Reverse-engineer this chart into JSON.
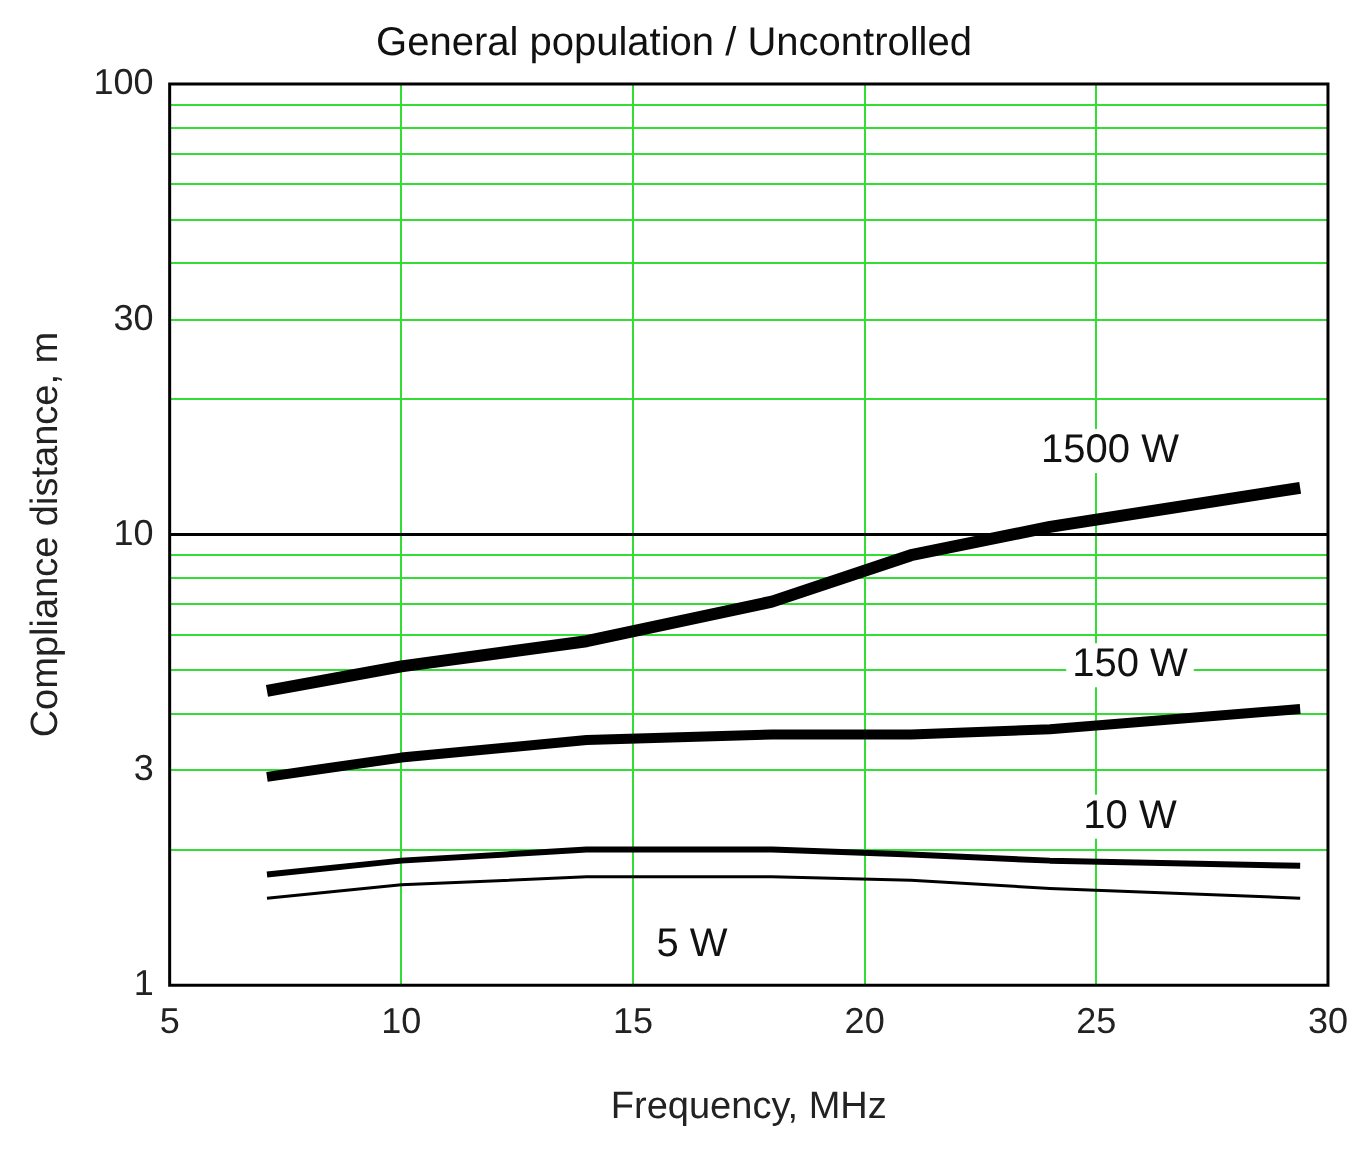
{
  "chart_data": {
    "type": "line",
    "title": "General population / Uncontrolled",
    "xlabel": "Frequency, MHz",
    "ylabel": "Compliance distance, m",
    "xlim": [
      5,
      30
    ],
    "xticks": [
      5,
      10,
      15,
      20,
      25,
      30
    ],
    "ylim": [
      1,
      100
    ],
    "log": "y",
    "yticks": [
      1,
      {
        "value": 2,
        "label": null
      },
      3,
      {
        "value": 4,
        "label": null
      },
      {
        "value": 5,
        "label": null
      },
      {
        "value": 6,
        "label": null
      },
      {
        "value": 7,
        "label": null
      },
      {
        "value": 8,
        "label": null
      },
      {
        "value": 9,
        "label": null
      },
      10,
      {
        "value": 20,
        "label": null
      },
      30,
      {
        "value": 40,
        "label": null
      },
      {
        "value": 50,
        "label": null
      },
      {
        "value": 60,
        "label": null
      },
      {
        "value": 70,
        "label": null
      },
      {
        "value": 80,
        "label": null
      },
      {
        "value": 90,
        "label": null
      },
      100
    ],
    "grid": true,
    "marker": "none",
    "line_style": "solid",
    "x": [
      7.1,
      10,
      14,
      18,
      21,
      24,
      29.4
    ],
    "series": [
      {
        "name": "1500 W",
        "color": "#000000",
        "values": [
          4.5,
          5.1,
          5.8,
          7.1,
          9.0,
          10.4,
          12.7
        ]
      },
      {
        "name": "150 W",
        "color": "#000000",
        "values": [
          2.9,
          3.2,
          3.5,
          3.6,
          3.6,
          3.7,
          4.1
        ]
      },
      {
        "name": "10 W",
        "color": "#000000",
        "values": [
          1.76,
          1.89,
          2.0,
          2.0,
          1.95,
          1.89,
          1.84
        ]
      },
      {
        "name": "5 W",
        "color": "#000000",
        "values": [
          1.56,
          1.67,
          1.74,
          1.74,
          1.71,
          1.64,
          1.56
        ]
      }
    ],
    "ref_lines": [
      {
        "axis": "y",
        "value": 10,
        "color": "#000000"
      }
    ]
  }
}
